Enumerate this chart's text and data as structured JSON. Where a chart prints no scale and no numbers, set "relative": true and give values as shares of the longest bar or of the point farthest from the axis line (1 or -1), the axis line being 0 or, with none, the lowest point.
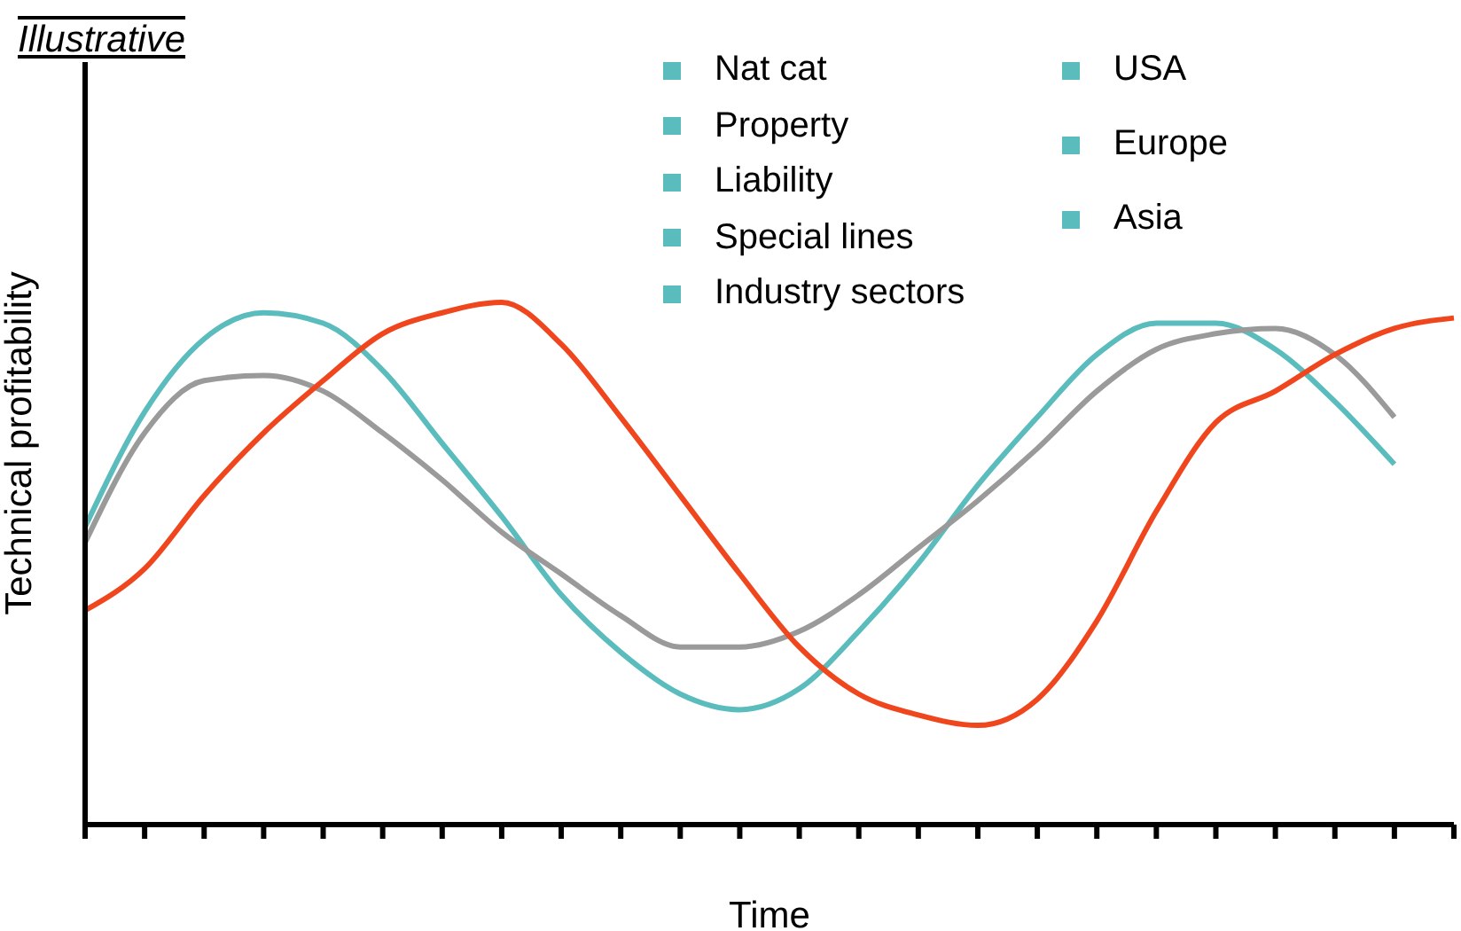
{
  "chart_data": {
    "type": "line",
    "relative": true,
    "title": "Illustrative",
    "xlabel": "Time",
    "ylabel": "Technical profitability",
    "categories": [
      null,
      null,
      null,
      null,
      null,
      null,
      null,
      null,
      null,
      null,
      null,
      null,
      null,
      null,
      null,
      null,
      null,
      null,
      null,
      null,
      null,
      null,
      null,
      null
    ],
    "series": [
      {
        "color": "#5bbcbd",
        "values": [
          0.57,
          0.79,
          0.93,
          0.98,
          0.96,
          0.87,
          0.73,
          0.59,
          0.44,
          0.33,
          0.25,
          0.22,
          0.26,
          0.37,
          0.5,
          0.65,
          0.78,
          0.9,
          0.96,
          0.96,
          0.91,
          0.81,
          0.69,
          null
        ]
      },
      {
        "color": "#9a9a9a",
        "values": [
          0.54,
          0.75,
          0.85,
          0.86,
          0.83,
          0.75,
          0.66,
          0.56,
          0.48,
          0.4,
          0.34,
          0.34,
          0.37,
          0.44,
          0.53,
          0.62,
          0.72,
          0.83,
          0.91,
          0.94,
          0.95,
          0.9,
          0.78,
          null
        ]
      },
      {
        "color": "#f0461e",
        "values": [
          0.41,
          0.49,
          0.63,
          0.75,
          0.85,
          0.94,
          0.98,
          1.0,
          0.92,
          0.78,
          0.63,
          0.48,
          0.34,
          0.25,
          0.21,
          0.19,
          0.24,
          0.39,
          0.6,
          0.77,
          0.83,
          0.9,
          0.95,
          0.97
        ]
      }
    ],
    "annotations": [
      "Nat cat",
      "Property",
      "Liability",
      "Special lines",
      "Industry sectors",
      "USA",
      "Europe",
      "Asia"
    ],
    "grid": false,
    "legend": false,
    "marker": "none"
  }
}
